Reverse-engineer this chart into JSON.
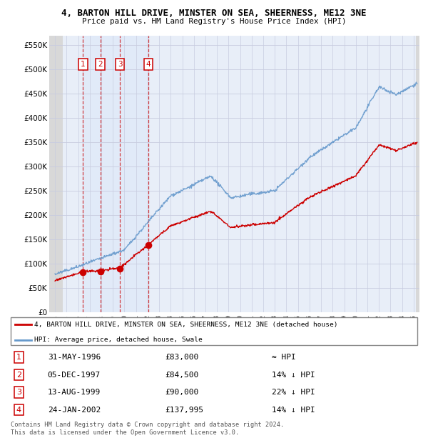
{
  "title": "4, BARTON HILL DRIVE, MINSTER ON SEA, SHEERNESS, ME12 3NE",
  "subtitle": "Price paid vs. HM Land Registry's House Price Index (HPI)",
  "ylabel_ticks": [
    "£0",
    "£50K",
    "£100K",
    "£150K",
    "£200K",
    "£250K",
    "£300K",
    "£350K",
    "£400K",
    "£450K",
    "£500K",
    "£550K"
  ],
  "ytick_vals": [
    0,
    50000,
    100000,
    150000,
    200000,
    250000,
    300000,
    350000,
    400000,
    450000,
    500000,
    550000
  ],
  "ylim": [
    0,
    570000
  ],
  "xlim_start": 1993.5,
  "xlim_end": 2025.5,
  "sale_dates_year": [
    1996.42,
    1997.92,
    1999.62,
    2002.07
  ],
  "sale_prices": [
    83000,
    84500,
    90000,
    137995
  ],
  "sale_labels": [
    "1",
    "2",
    "3",
    "4"
  ],
  "legend_line1": "4, BARTON HILL DRIVE, MINSTER ON SEA, SHEERNESS, ME12 3NE (detached house)",
  "legend_line2": "HPI: Average price, detached house, Swale",
  "table_data": [
    [
      "1",
      "31-MAY-1996",
      "£83,000",
      "≈ HPI"
    ],
    [
      "2",
      "05-DEC-1997",
      "£84,500",
      "14% ↓ HPI"
    ],
    [
      "3",
      "13-AUG-1999",
      "£90,000",
      "22% ↓ HPI"
    ],
    [
      "4",
      "24-JAN-2002",
      "£137,995",
      "14% ↓ HPI"
    ]
  ],
  "footer": "Contains HM Land Registry data © Crown copyright and database right 2024.\nThis data is licensed under the Open Government Licence v3.0.",
  "red_color": "#cc0000",
  "blue_color": "#6699cc",
  "bg_color": "#e8eef8",
  "grid_color": "#c8cce0"
}
